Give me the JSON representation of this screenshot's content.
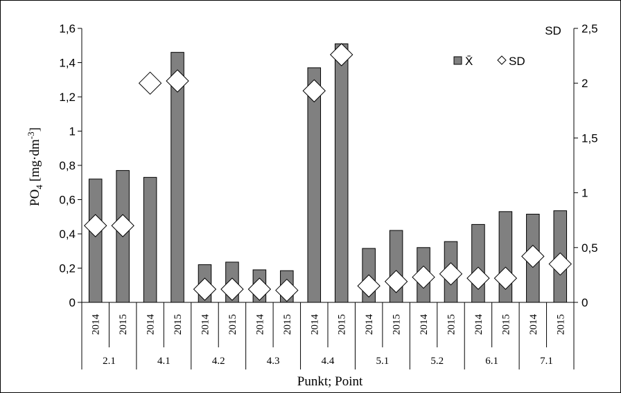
{
  "chart_data": {
    "type": "bar",
    "groups": [
      "2.1",
      "4.1",
      "4.2",
      "4.3",
      "4.4",
      "5.1",
      "5.2",
      "6.1",
      "7.1"
    ],
    "years": [
      "2014",
      "2015"
    ],
    "series": [
      {
        "name": "X̄",
        "axis": "left",
        "mark": "bar",
        "color": "#808080",
        "values": [
          0.72,
          0.77,
          0.73,
          1.46,
          0.22,
          0.235,
          0.19,
          0.185,
          1.37,
          1.51,
          0.315,
          0.42,
          0.32,
          0.355,
          0.455,
          0.53,
          0.515,
          0.535
        ]
      },
      {
        "name": "SD",
        "axis": "right",
        "mark": "diamond",
        "color": "#ffffff",
        "values": [
          0.7,
          0.7,
          2.0,
          2.02,
          0.12,
          0.12,
          0.12,
          0.11,
          1.93,
          2.26,
          0.15,
          0.19,
          0.23,
          0.26,
          0.22,
          0.22,
          0.42,
          0.35
        ]
      }
    ],
    "ylabel_left": "PO",
    "ylabel_left_sub": "4",
    "ylabel_left_unit": " [mg·dm",
    "ylabel_left_sup": "-3",
    "ylabel_left_close": "]",
    "ylabel_right": "SD",
    "xlabel": "Punkt; Point",
    "ylim_left": [
      0,
      1.6
    ],
    "yticks_left": [
      "0",
      "0,2",
      "0,4",
      "0,6",
      "0,8",
      "1",
      "1,2",
      "1,4",
      "1,6"
    ],
    "ylim_right": [
      0,
      2.5
    ],
    "yticks_right": [
      "0",
      "0,5",
      "1",
      "1,5",
      "2",
      "2,5"
    ],
    "grid": false,
    "legend_position": "top-right"
  }
}
